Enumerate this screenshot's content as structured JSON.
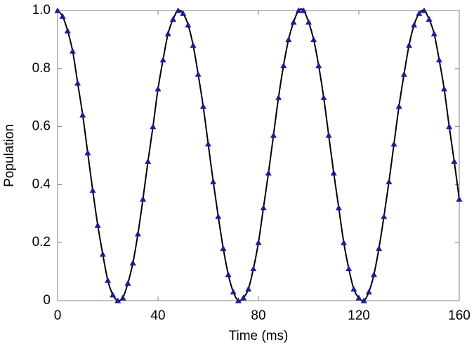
{
  "chart_data": {
    "type": "line",
    "xlabel": "Time (ms)",
    "ylabel": "Population",
    "x": [
      0,
      2,
      4,
      6,
      8,
      10,
      12,
      14,
      16,
      18,
      20,
      22,
      24,
      26,
      28,
      30,
      32,
      34,
      36,
      38,
      40,
      42,
      44,
      46,
      48,
      50,
      52,
      54,
      56,
      58,
      60,
      62,
      64,
      66,
      68,
      70,
      72,
      74,
      76,
      78,
      80,
      82,
      84,
      86,
      88,
      90,
      92,
      94,
      96,
      98,
      100,
      102,
      104,
      106,
      108,
      110,
      112,
      114,
      116,
      118,
      120,
      122,
      124,
      126,
      128,
      130,
      132,
      134,
      136,
      138,
      140,
      142,
      144,
      146,
      148,
      150,
      152,
      154,
      156,
      158,
      160
    ],
    "series": [
      {
        "color": "#1c1c9a",
        "marker": "triangle",
        "values": [
          1.0,
          0.98,
          0.93,
          0.86,
          0.75,
          0.64,
          0.51,
          0.38,
          0.26,
          0.16,
          0.07,
          0.02,
          0.0,
          0.01,
          0.06,
          0.13,
          0.23,
          0.35,
          0.48,
          0.6,
          0.73,
          0.83,
          0.92,
          0.97,
          1.0,
          0.99,
          0.95,
          0.88,
          0.78,
          0.67,
          0.54,
          0.41,
          0.29,
          0.18,
          0.09,
          0.03,
          0.0,
          0.01,
          0.04,
          0.11,
          0.2,
          0.32,
          0.44,
          0.57,
          0.7,
          0.81,
          0.9,
          0.96,
          1.0,
          1.0,
          0.96,
          0.9,
          0.81,
          0.7,
          0.57,
          0.44,
          0.32,
          0.2,
          0.11,
          0.04,
          0.01,
          0.0,
          0.03,
          0.09,
          0.18,
          0.29,
          0.41,
          0.54,
          0.67,
          0.78,
          0.88,
          0.95,
          0.99,
          1.0,
          0.97,
          0.92,
          0.83,
          0.73,
          0.6,
          0.48,
          0.35
        ]
      },
      {
        "color": "#000000",
        "marker": "none",
        "values": [
          1.0,
          0.98,
          0.93,
          0.86,
          0.75,
          0.64,
          0.51,
          0.38,
          0.26,
          0.16,
          0.07,
          0.02,
          0.0,
          0.01,
          0.06,
          0.13,
          0.23,
          0.35,
          0.48,
          0.6,
          0.73,
          0.83,
          0.92,
          0.97,
          1.0,
          0.99,
          0.95,
          0.88,
          0.78,
          0.67,
          0.54,
          0.41,
          0.29,
          0.18,
          0.09,
          0.03,
          0.0,
          0.01,
          0.04,
          0.11,
          0.2,
          0.32,
          0.44,
          0.57,
          0.7,
          0.81,
          0.9,
          0.96,
          1.0,
          1.0,
          0.96,
          0.9,
          0.81,
          0.7,
          0.57,
          0.44,
          0.32,
          0.2,
          0.11,
          0.04,
          0.01,
          0.0,
          0.03,
          0.09,
          0.18,
          0.29,
          0.41,
          0.54,
          0.67,
          0.78,
          0.88,
          0.95,
          0.99,
          1.0,
          0.97,
          0.92,
          0.83,
          0.73,
          0.6,
          0.48,
          0.35
        ]
      }
    ],
    "xlim": [
      0,
      160
    ],
    "xticks": [
      0,
      40,
      80,
      120,
      160
    ],
    "ylim": [
      0,
      1
    ],
    "yticks": [
      0,
      0.2,
      0.4,
      0.6,
      0.8,
      {
        "value": 1,
        "label": "1.0"
      }
    ],
    "grid": false
  }
}
